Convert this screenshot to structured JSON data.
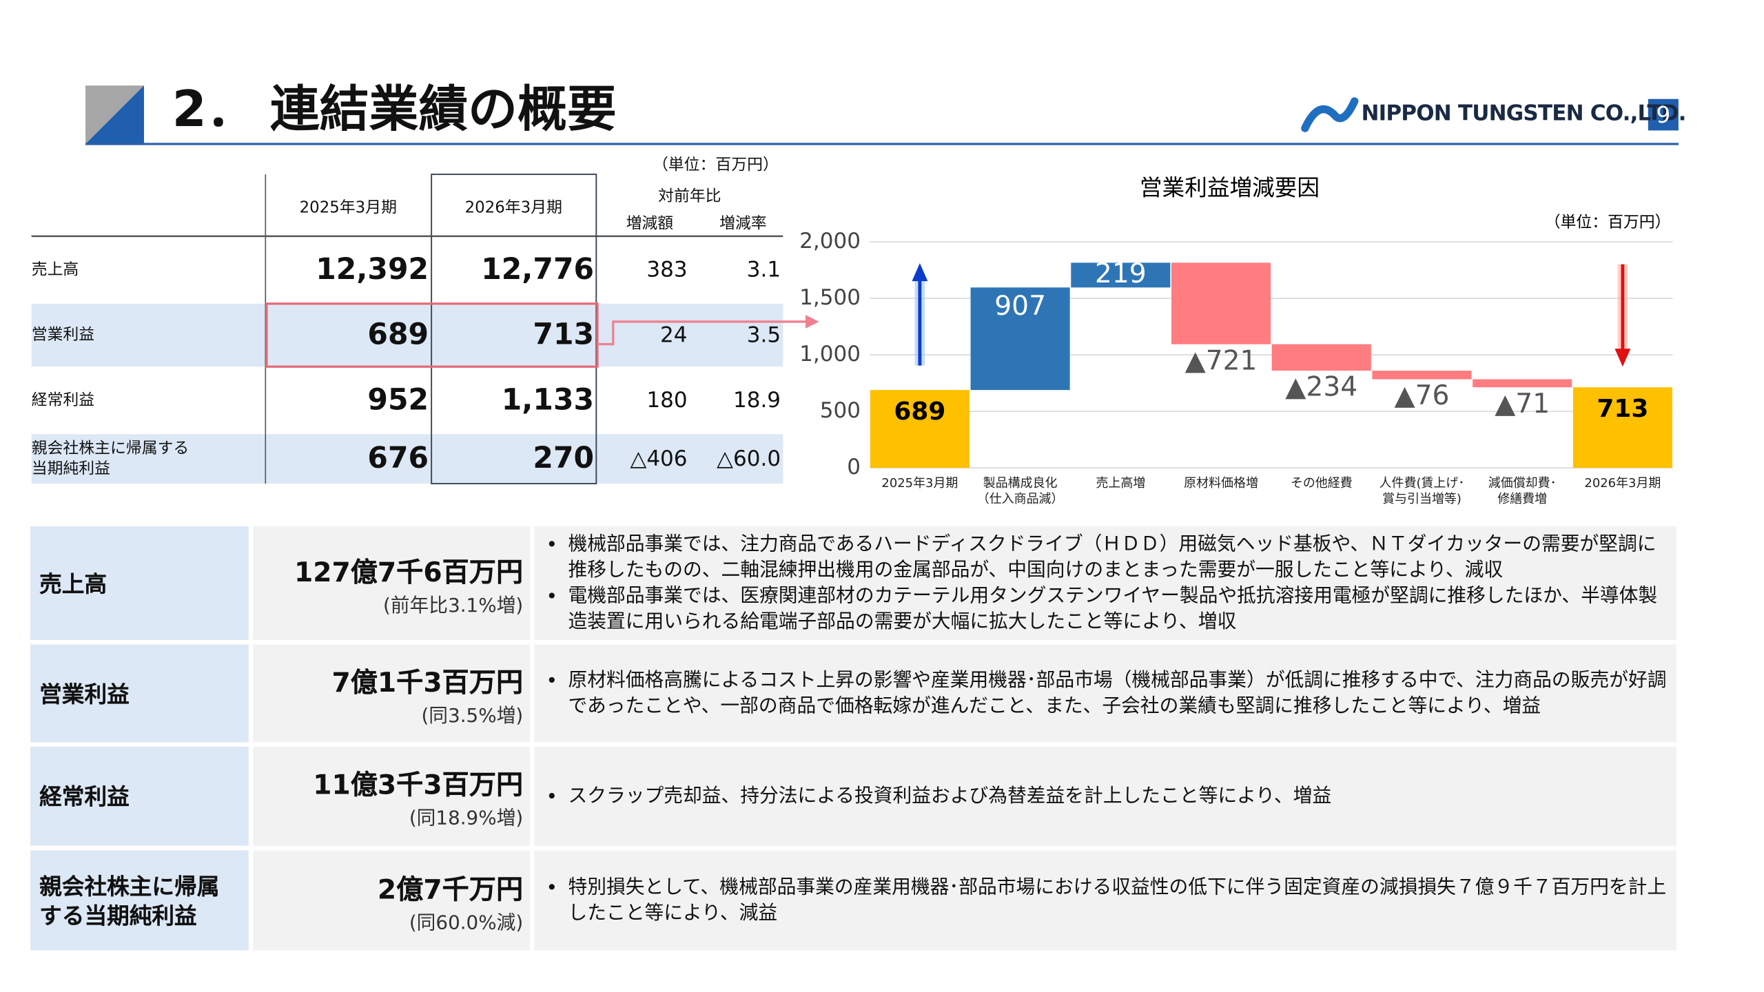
{
  "header": {
    "number": "2．",
    "title": "連結業績の概要",
    "company": "NIPPON TUNGSTEN CO.,LTD.",
    "page": "9"
  },
  "table": {
    "unit": "（単位：百万円）",
    "columns": [
      "2025年3月期",
      "2026年3月期"
    ],
    "yoy": "対前年比",
    "yoy_columns": [
      "増減額",
      "増減率"
    ],
    "rows": [
      [
        "売上高",
        "12,392",
        "12,776",
        "383",
        "3.1"
      ],
      [
        "営業利益",
        "689",
        "713",
        "24",
        "3.5"
      ],
      [
        "経常利益",
        "952",
        "1,133",
        "180",
        "18.9"
      ],
      [
        "親会社株主に帰属する\n当期純利益",
        "676",
        "270",
        "△406",
        "△60.0"
      ]
    ]
  },
  "chart_data": {
    "type": "waterfall",
    "title": "営業利益増減要因",
    "unit": "（単位：百万円）",
    "categories": [
      "2025年3月期",
      "製品構成良化\n（仕入商品減）",
      "売上高増",
      "原材料価格増",
      "その他経費",
      "人件費(賃上げ･\n賞与引当増等)",
      "減価償却費･\n修繕費増",
      "2026年3月期"
    ],
    "values": [
      689,
      907,
      219,
      -721,
      -234,
      -76,
      -71,
      713
    ],
    "value_labels": [
      "689",
      "907",
      "219",
      "▲721",
      "▲234",
      "▲76",
      "▲71",
      "713"
    ],
    "colors": {
      "total": "#ffc000",
      "increase": "#2e75b6",
      "decrease": "#ff7c80"
    },
    "ylim": [
      0,
      2000
    ],
    "yticks": [
      0,
      500,
      {
        "value": 1000,
        "label": "1,000"
      },
      {
        "value": 1500,
        "label": "1,500"
      },
      {
        "value": 2000,
        "label": "2,000"
      }
    ],
    "grid": true
  },
  "summary": [
    {
      "label": "売上高",
      "amount": "127億7千6百万円",
      "note": "(前年比3.1%増)",
      "bullets": [
        "機械部品事業では、注力商品であるハードディスクドライブ（ＨＤＤ）用磁気ヘッド基板や、ＮＴダイカッターの需要が堅調に推移したものの、二軸混練押出機用の金属部品が、中国向けのまとまった需要が一服したこと等により、減収",
        "電機部品事業では、医療関連部材のカテーテル用タングステンワイヤー製品や抵抗溶接用電極が堅調に推移したほか、半導体製造装置に用いられる給電端子部品の需要が大幅に拡大したこと等により、増収"
      ]
    },
    {
      "label": "営業利益",
      "amount": "7億1千3百万円",
      "note": "(同3.5%増)",
      "bullets": [
        "原材料価格高騰によるコスト上昇の影響や産業用機器･部品市場（機械部品事業）が低調に推移する中で、注力商品の販売が好調であったことや、一部の商品で価格転嫁が進んだこと、また、子会社の業績も堅調に推移したこと等により、増益"
      ]
    },
    {
      "label": "経常利益",
      "amount": "11億3千3百万円",
      "note": "(同18.9%増)",
      "bullets": [
        "スクラップ売却益、持分法による投資利益および為替差益を計上したこと等により、増益"
      ]
    },
    {
      "label": "親会社株主に帰属する当期純利益",
      "amount": "2億7千万円",
      "note": "(同60.0%減)",
      "bullets": [
        "特別損失として、機械部品事業の産業用機器･部品市場における収益性の低下に伴う固定資産の減損損失７億９千７百万円を計上したこと等により、減益"
      ]
    }
  ]
}
